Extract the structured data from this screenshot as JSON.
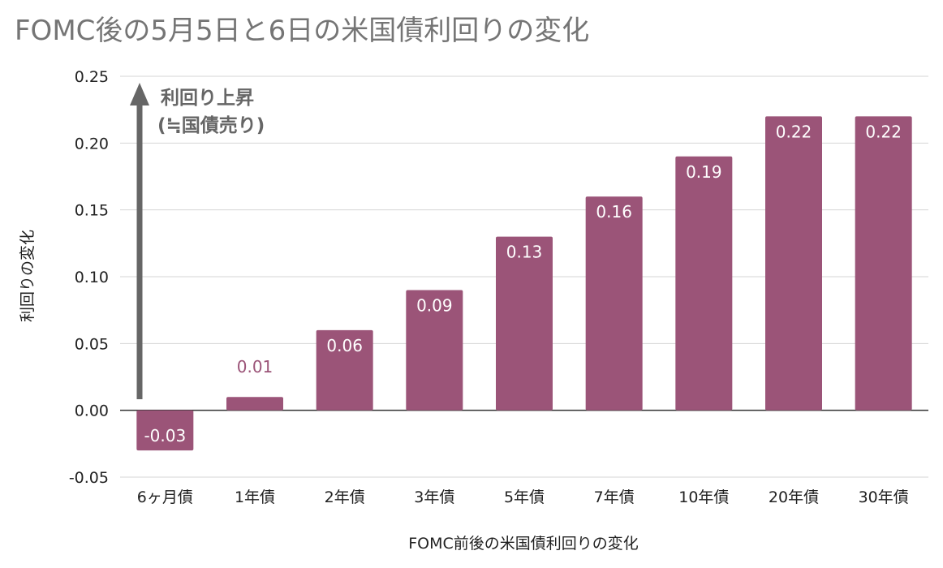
{
  "title": "FOMC後の5月5日と6日の米国債利回りの変化",
  "chart_data": {
    "type": "bar",
    "title": "FOMC後の5月5日と6日の米国債利回りの変化",
    "xlabel": "FOMC前後の米国債利回りの変化",
    "ylabel": "利回りの変化",
    "categories": [
      "6ヶ月債",
      "1年債",
      "2年債",
      "3年債",
      "5年債",
      "7年債",
      "10年債",
      "20年債",
      "30年債"
    ],
    "values": [
      -0.03,
      0.01,
      0.06,
      0.09,
      0.13,
      0.16,
      0.19,
      0.22,
      0.22
    ],
    "data_labels": [
      "-0.03",
      "0.01",
      "0.06",
      "0.09",
      "0.13",
      "0.16",
      "0.19",
      "0.22",
      "0.22"
    ],
    "ylim": [
      -0.05,
      0.25
    ],
    "yticks": [
      -0.05,
      0,
      0.05,
      0.1,
      0.15,
      0.2,
      0.25
    ],
    "ytick_labels": [
      "-0.05",
      "0.00",
      "0.05",
      "0.10",
      "0.15",
      "0.20",
      "0.25"
    ],
    "grid": true,
    "bar_color": "#9b5478",
    "annotation": {
      "line1": "利回り上昇",
      "line2": "(≒国債売り)",
      "arrow_color": "#666666"
    }
  }
}
